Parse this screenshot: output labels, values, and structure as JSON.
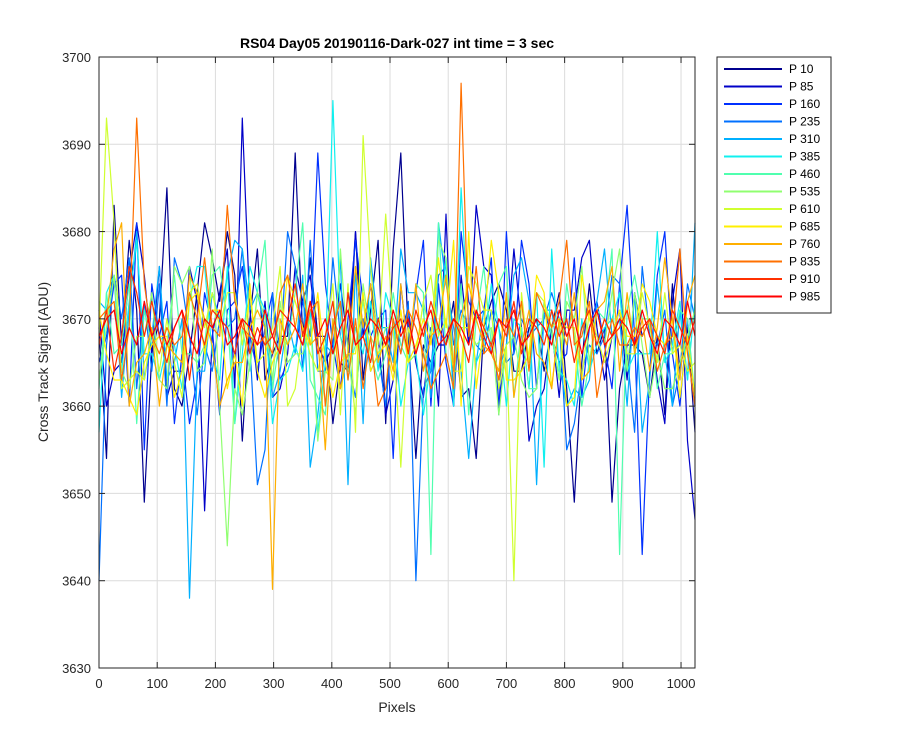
{
  "chart_data": {
    "type": "line",
    "title": "RS04 Day05 20190116-Dark-027 int time = 3 sec",
    "xlabel": "Pixels",
    "ylabel": "Cross Track Signal (ADU)",
    "xlim": [
      0,
      1024
    ],
    "ylim": [
      3630,
      3700
    ],
    "xticks": [
      0,
      100,
      200,
      300,
      400,
      500,
      600,
      700,
      800,
      900,
      1000
    ],
    "yticks": [
      3630,
      3640,
      3650,
      3660,
      3670,
      3680,
      3690,
      3700
    ],
    "grid": true,
    "legend_position": "outside-top-right",
    "series": [
      {
        "name": "P 10",
        "color": "#00008f",
        "values": [
          3669,
          3654,
          3683,
          3667,
          3679,
          3671,
          3649,
          3666,
          3670,
          3685,
          3662,
          3660,
          3666,
          3673,
          3681,
          3677,
          3672,
          3680,
          3675,
          3656,
          3670,
          3678,
          3663,
          3666,
          3668,
          3668,
          3689,
          3668,
          3677,
          3668,
          3668,
          3658,
          3665,
          3664,
          3680,
          3663,
          3671,
          3679,
          3658,
          3678,
          3689,
          3668,
          3654,
          3667,
          3665,
          3667,
          3667,
          3672,
          3661,
          3662,
          3654,
          3669,
          3672,
          3674,
          3671,
          3664,
          3664,
          3669,
          3670,
          3664,
          3669,
          3673,
          3662,
          3649,
          3665,
          3674,
          3666,
          3669,
          3649,
          3662,
          3667,
          3667,
          3666,
          3661,
          3668,
          3659,
          3674,
          3664,
          3669,
          3657
        ]
      },
      {
        "name": "P 85",
        "color": "#0000c8",
        "values": [
          3671,
          3660,
          3664,
          3665,
          3675,
          3681,
          3675,
          3666,
          3676,
          3661,
          3664,
          3664,
          3676,
          3672,
          3648,
          3668,
          3673,
          3678,
          3662,
          3693,
          3671,
          3663,
          3672,
          3661,
          3662,
          3666,
          3676,
          3672,
          3675,
          3667,
          3665,
          3667,
          3674,
          3667,
          3680,
          3668,
          3674,
          3668,
          3659,
          3663,
          3669,
          3671,
          3665,
          3661,
          3669,
          3660,
          3682,
          3660,
          3675,
          3667,
          3683,
          3676,
          3675,
          3660,
          3667,
          3678,
          3669,
          3656,
          3660,
          3662,
          3669,
          3661,
          3671,
          3671,
          3677,
          3679,
          3669,
          3663,
          3668,
          3671,
          3663,
          3673,
          3668,
          3670,
          3663,
          3658,
          3672,
          3678,
          3656,
          3647
        ]
      },
      {
        "name": "P 160",
        "color": "#0030ff",
        "values": [
          3665,
          3668,
          3674,
          3675,
          3660,
          3681,
          3655,
          3674,
          3668,
          3672,
          3658,
          3666,
          3658,
          3663,
          3673,
          3669,
          3659,
          3671,
          3672,
          3676,
          3668,
          3664,
          3669,
          3673,
          3663,
          3665,
          3666,
          3672,
          3668,
          3689,
          3674,
          3667,
          3662,
          3670,
          3679,
          3672,
          3668,
          3670,
          3671,
          3654,
          3674,
          3666,
          3673,
          3679,
          3660,
          3674,
          3665,
          3660,
          3680,
          3672,
          3670,
          3671,
          3677,
          3659,
          3680,
          3666,
          3679,
          3674,
          3662,
          3671,
          3668,
          3665,
          3666,
          3677,
          3661,
          3669,
          3672,
          3667,
          3662,
          3674,
          3683,
          3668,
          3643,
          3664,
          3675,
          3680,
          3666,
          3660,
          3670,
          3660
        ]
      },
      {
        "name": "P 235",
        "color": "#0070ff",
        "values": [
          3640,
          3667,
          3675,
          3670,
          3677,
          3662,
          3672,
          3664,
          3674,
          3660,
          3677,
          3674,
          3668,
          3659,
          3667,
          3664,
          3670,
          3669,
          3670,
          3678,
          3667,
          3651,
          3655,
          3673,
          3666,
          3680,
          3676,
          3664,
          3679,
          3664,
          3664,
          3677,
          3668,
          3665,
          3661,
          3670,
          3664,
          3666,
          3660,
          3670,
          3666,
          3672,
          3640,
          3662,
          3664,
          3675,
          3676,
          3667,
          3671,
          3669,
          3667,
          3666,
          3671,
          3669,
          3665,
          3666,
          3670,
          3668,
          3669,
          3670,
          3673,
          3670,
          3655,
          3658,
          3664,
          3667,
          3666,
          3668,
          3675,
          3674,
          3666,
          3657,
          3676,
          3668,
          3667,
          3671,
          3660,
          3664,
          3674,
          3670
        ]
      },
      {
        "name": "P 310",
        "color": "#00b0ff",
        "values": [
          3672,
          3671,
          3675,
          3661,
          3671,
          3680,
          3663,
          3668,
          3676,
          3663,
          3665,
          3670,
          3638,
          3664,
          3664,
          3673,
          3670,
          3675,
          3679,
          3678,
          3671,
          3673,
          3669,
          3661,
          3664,
          3670,
          3666,
          3675,
          3653,
          3659,
          3667,
          3666,
          3677,
          3651,
          3676,
          3658,
          3677,
          3669,
          3669,
          3665,
          3678,
          3673,
          3673,
          3671,
          3661,
          3681,
          3674,
          3669,
          3664,
          3654,
          3665,
          3671,
          3666,
          3664,
          3667,
          3675,
          3677,
          3672,
          3651,
          3671,
          3671,
          3665,
          3660,
          3662,
          3661,
          3663,
          3672,
          3678,
          3668,
          3670,
          3660,
          3673,
          3657,
          3663,
          3674,
          3666,
          3660,
          3671,
          3663,
          3681
        ]
      },
      {
        "name": "P 385",
        "color": "#10f0ef",
        "values": [
          3657,
          3673,
          3675,
          3664,
          3672,
          3679,
          3666,
          3666,
          3663,
          3667,
          3667,
          3662,
          3672,
          3676,
          3676,
          3666,
          3663,
          3676,
          3658,
          3666,
          3676,
          3673,
          3671,
          3658,
          3663,
          3664,
          3667,
          3664,
          3671,
          3657,
          3665,
          3695,
          3670,
          3663,
          3669,
          3666,
          3672,
          3664,
          3673,
          3670,
          3660,
          3665,
          3666,
          3659,
          3665,
          3668,
          3677,
          3660,
          3685,
          3669,
          3665,
          3667,
          3674,
          3669,
          3660,
          3670,
          3669,
          3662,
          3673,
          3653,
          3678,
          3664,
          3663,
          3660,
          3670,
          3664,
          3667,
          3669,
          3670,
          3673,
          3664,
          3666,
          3666,
          3666,
          3680,
          3665,
          3667,
          3672,
          3663,
          3672
        ]
      },
      {
        "name": "P 460",
        "color": "#50ffaf",
        "values": [
          3662,
          3673,
          3666,
          3667,
          3674,
          3658,
          3671,
          3667,
          3668,
          3667,
          3675,
          3666,
          3666,
          3665,
          3667,
          3675,
          3676,
          3670,
          3658,
          3669,
          3664,
          3673,
          3679,
          3662,
          3668,
          3667,
          3673,
          3681,
          3663,
          3661,
          3659,
          3670,
          3668,
          3664,
          3667,
          3672,
          3666,
          3663,
          3666,
          3673,
          3667,
          3665,
          3674,
          3673,
          3643,
          3681,
          3666,
          3662,
          3674,
          3659,
          3670,
          3676,
          3667,
          3674,
          3676,
          3661,
          3669,
          3662,
          3662,
          3672,
          3668,
          3663,
          3674,
          3668,
          3660,
          3665,
          3671,
          3670,
          3678,
          3643,
          3671,
          3675,
          3670,
          3670,
          3662,
          3666,
          3666,
          3671,
          3670,
          3661
        ]
      },
      {
        "name": "P 535",
        "color": "#90ff70",
        "values": [
          3663,
          3669,
          3675,
          3664,
          3662,
          3668,
          3668,
          3673,
          3663,
          3662,
          3676,
          3674,
          3676,
          3664,
          3665,
          3678,
          3660,
          3644,
          3662,
          3659,
          3665,
          3673,
          3670,
          3663,
          3672,
          3665,
          3666,
          3666,
          3670,
          3656,
          3664,
          3663,
          3678,
          3666,
          3659,
          3674,
          3668,
          3666,
          3669,
          3669,
          3670,
          3665,
          3666,
          3672,
          3668,
          3679,
          3677,
          3665,
          3669,
          3669,
          3667,
          3668,
          3669,
          3659,
          3667,
          3668,
          3663,
          3661,
          3662,
          3672,
          3669,
          3663,
          3672,
          3670,
          3676,
          3665,
          3671,
          3667,
          3673,
          3678,
          3664,
          3673,
          3667,
          3661,
          3666,
          3662,
          3662,
          3665,
          3668,
          3671
        ]
      },
      {
        "name": "P 610",
        "color": "#d0ff30",
        "values": [
          3668,
          3693,
          3681,
          3662,
          3663,
          3664,
          3663,
          3669,
          3664,
          3670,
          3665,
          3661,
          3673,
          3674,
          3669,
          3673,
          3669,
          3673,
          3673,
          3667,
          3673,
          3665,
          3666,
          3669,
          3676,
          3660,
          3662,
          3669,
          3666,
          3664,
          3668,
          3674,
          3659,
          3674,
          3657,
          3691,
          3676,
          3667,
          3682,
          3669,
          3653,
          3669,
          3666,
          3672,
          3675,
          3668,
          3670,
          3664,
          3664,
          3676,
          3674,
          3671,
          3671,
          3662,
          3667,
          3640,
          3673,
          3665,
          3673,
          3672,
          3669,
          3670,
          3669,
          3669,
          3663,
          3671,
          3668,
          3665,
          3668,
          3671,
          3666,
          3666,
          3673,
          3669,
          3665,
          3673,
          3666,
          3667,
          3664,
          3665
        ]
      },
      {
        "name": "P 685",
        "color": "#ffef00",
        "values": [
          3671,
          3666,
          3663,
          3663,
          3661,
          3659,
          3665,
          3667,
          3668,
          3668,
          3661,
          3664,
          3672,
          3673,
          3666,
          3671,
          3671,
          3662,
          3666,
          3660,
          3674,
          3664,
          3661,
          3665,
          3667,
          3675,
          3672,
          3669,
          3667,
          3673,
          3665,
          3661,
          3665,
          3666,
          3666,
          3673,
          3664,
          3666,
          3667,
          3663,
          3671,
          3665,
          3667,
          3670,
          3667,
          3677,
          3669,
          3679,
          3660,
          3680,
          3662,
          3669,
          3679,
          3673,
          3663,
          3663,
          3664,
          3666,
          3675,
          3673,
          3662,
          3670,
          3660,
          3661,
          3675,
          3670,
          3667,
          3670,
          3668,
          3671,
          3668,
          3668,
          3674,
          3672,
          3668,
          3667,
          3670,
          3661,
          3668,
          3661
        ]
      },
      {
        "name": "P 760",
        "color": "#ffaf00",
        "values": [
          3668,
          3670,
          3678,
          3681,
          3660,
          3665,
          3666,
          3669,
          3660,
          3667,
          3666,
          3665,
          3675,
          3673,
          3670,
          3667,
          3660,
          3663,
          3665,
          3665,
          3669,
          3671,
          3669,
          3639,
          3670,
          3667,
          3669,
          3674,
          3667,
          3668,
          3655,
          3670,
          3662,
          3666,
          3676,
          3669,
          3674,
          3665,
          3668,
          3664,
          3674,
          3666,
          3674,
          3664,
          3668,
          3669,
          3675,
          3664,
          3670,
          3674,
          3670,
          3667,
          3666,
          3664,
          3673,
          3661,
          3667,
          3671,
          3666,
          3665,
          3662,
          3670,
          3667,
          3673,
          3663,
          3664,
          3671,
          3672,
          3676,
          3664,
          3673,
          3666,
          3670,
          3664,
          3669,
          3677,
          3670,
          3663,
          3672,
          3675
        ]
      },
      {
        "name": "P 835",
        "color": "#ff7000",
        "values": [
          3670,
          3671,
          3672,
          3663,
          3669,
          3693,
          3674,
          3668,
          3666,
          3669,
          3667,
          3668,
          3673,
          3670,
          3677,
          3669,
          3668,
          3683,
          3672,
          3669,
          3668,
          3667,
          3668,
          3666,
          3673,
          3675,
          3669,
          3667,
          3671,
          3672,
          3660,
          3669,
          3672,
          3663,
          3670,
          3662,
          3668,
          3660,
          3662,
          3670,
          3666,
          3671,
          3669,
          3666,
          3662,
          3664,
          3666,
          3662,
          3697,
          3668,
          3676,
          3666,
          3667,
          3663,
          3670,
          3668,
          3672,
          3664,
          3673,
          3671,
          3669,
          3672,
          3679,
          3667,
          3668,
          3672,
          3661,
          3666,
          3670,
          3667,
          3667,
          3669,
          3668,
          3670,
          3664,
          3667,
          3668,
          3678,
          3666,
          3660
        ]
      },
      {
        "name": "P 910",
        "color": "#ff3000",
        "values": [
          3667,
          3671,
          3664,
          3668,
          3676,
          3673,
          3668,
          3672,
          3668,
          3665,
          3669,
          3671,
          3663,
          3670,
          3667,
          3671,
          3670,
          3669,
          3666,
          3670,
          3666,
          3669,
          3667,
          3668,
          3671,
          3670,
          3674,
          3668,
          3672,
          3666,
          3668,
          3672,
          3664,
          3673,
          3667,
          3668,
          3665,
          3670,
          3667,
          3669,
          3670,
          3666,
          3671,
          3668,
          3672,
          3669,
          3667,
          3670,
          3668,
          3665,
          3671,
          3669,
          3667,
          3670,
          3668,
          3672,
          3666,
          3670,
          3669,
          3667,
          3671,
          3668,
          3670,
          3665,
          3669,
          3671,
          3667,
          3670,
          3668,
          3669,
          3671,
          3667,
          3669,
          3670,
          3668,
          3666,
          3671,
          3669,
          3667,
          3670
        ]
      },
      {
        "name": "P 985",
        "color": "#ff0000",
        "values": [
          3668,
          3670,
          3671,
          3666,
          3669,
          3667,
          3672,
          3668,
          3670,
          3667,
          3669,
          3671,
          3668,
          3666,
          3670,
          3669,
          3671,
          3667,
          3668,
          3670,
          3669,
          3667,
          3671,
          3668,
          3666,
          3670,
          3669,
          3667,
          3672,
          3668,
          3670,
          3666,
          3669,
          3671,
          3667,
          3668,
          3670,
          3669,
          3667,
          3671,
          3668,
          3670,
          3666,
          3669,
          3671,
          3667,
          3668,
          3670,
          3669,
          3667,
          3671,
          3668,
          3666,
          3670,
          3669,
          3671,
          3667,
          3668,
          3670,
          3669,
          3667,
          3671,
          3668,
          3670,
          3666,
          3669,
          3671,
          3667,
          3668,
          3670,
          3669,
          3667,
          3671,
          3668,
          3666,
          3670,
          3669,
          3667,
          3672,
          3668
        ]
      }
    ]
  }
}
